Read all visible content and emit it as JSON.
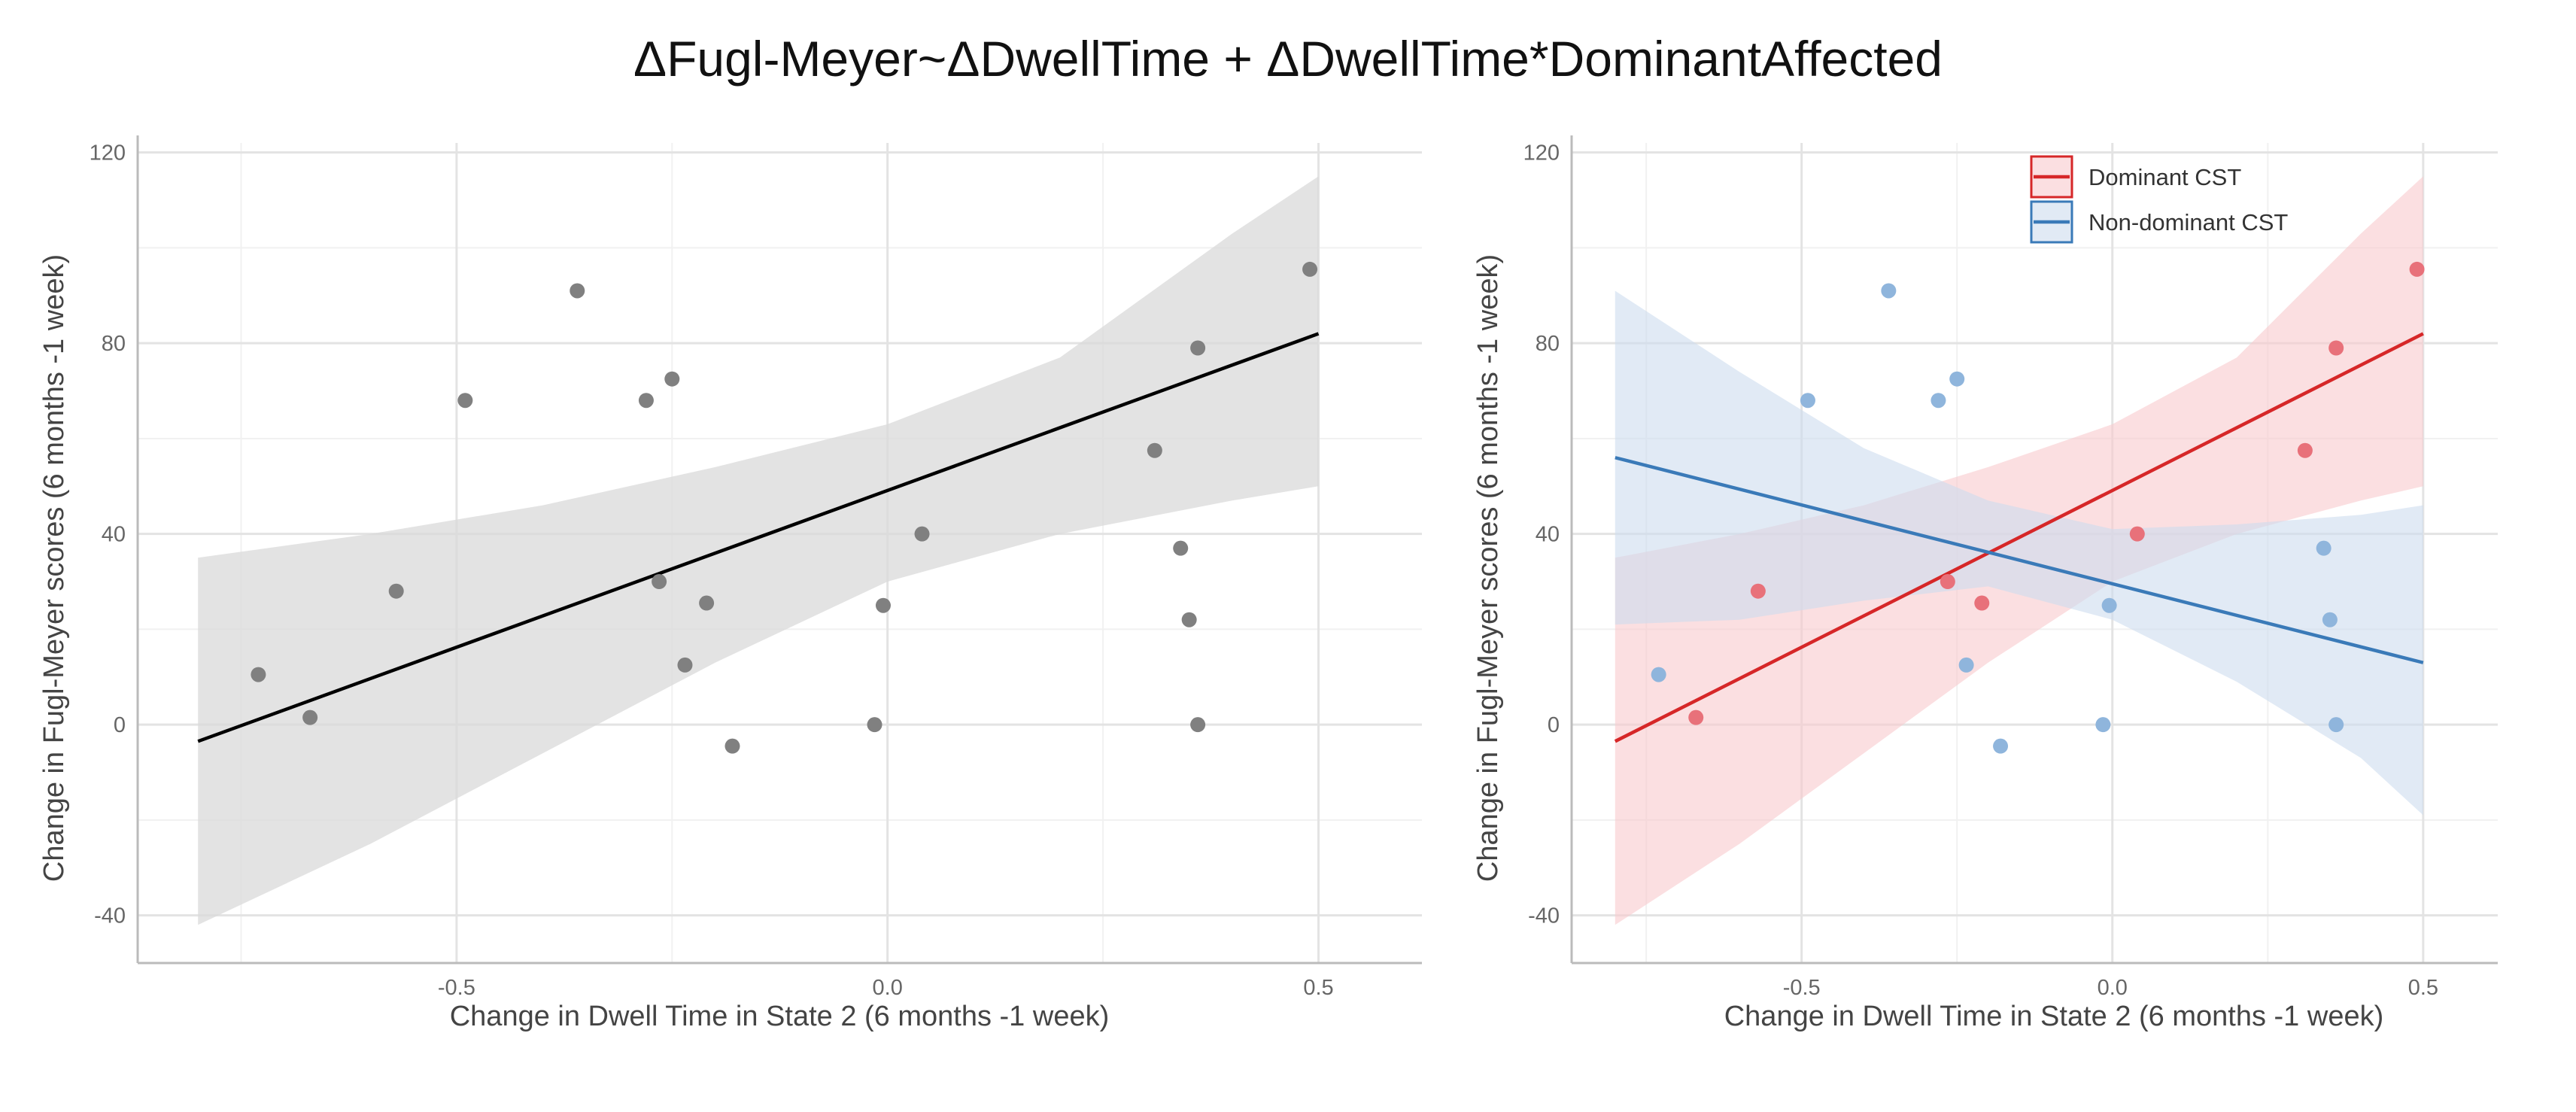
{
  "figure": {
    "title": "ΔFugl-Meyer~ΔDwellTime + ΔDwellTime*DominantAffected"
  },
  "chart_data": [
    {
      "type": "scatter",
      "xlabel": "Change in Dwell Time in State 2 (6 months -1 week)",
      "ylabel": "Change in Fugl-Meyer scores (6 months -1 week)",
      "xlim": [
        -0.87,
        0.62
      ],
      "ylim": [
        -50,
        122
      ],
      "x_ticks": [
        -0.5,
        0.0,
        0.5
      ],
      "x_tick_labels": [
        "-0.5",
        "0.0",
        "0.5"
      ],
      "y_ticks": [
        -40,
        0,
        40,
        80,
        120
      ],
      "y_tick_labels": [
        "-40",
        "0",
        "40",
        "80",
        "120"
      ],
      "grid": true,
      "point_color": "#808080",
      "line_color": "#000000",
      "band_color": "#d9d9d9",
      "points": [
        {
          "x": -0.73,
          "y": 10.5
        },
        {
          "x": -0.67,
          "y": 1.5
        },
        {
          "x": -0.57,
          "y": 28
        },
        {
          "x": -0.49,
          "y": 68
        },
        {
          "x": -0.36,
          "y": 91
        },
        {
          "x": -0.28,
          "y": 68
        },
        {
          "x": -0.265,
          "y": 30
        },
        {
          "x": -0.25,
          "y": 72.5
        },
        {
          "x": -0.235,
          "y": 12.5
        },
        {
          "x": -0.21,
          "y": 25.5
        },
        {
          "x": -0.18,
          "y": -4.5
        },
        {
          "x": -0.015,
          "y": 0
        },
        {
          "x": -0.005,
          "y": 25
        },
        {
          "x": 0.04,
          "y": 40
        },
        {
          "x": 0.31,
          "y": 57.5
        },
        {
          "x": 0.34,
          "y": 37
        },
        {
          "x": 0.35,
          "y": 22
        },
        {
          "x": 0.36,
          "y": 79
        },
        {
          "x": 0.36,
          "y": 0
        },
        {
          "x": 0.49,
          "y": 95.5
        }
      ],
      "fit": {
        "x": [
          -0.8,
          0.5
        ],
        "y": [
          -3.5,
          82
        ]
      },
      "ci_band": {
        "x": [
          -0.8,
          -0.6,
          -0.4,
          -0.2,
          0.0,
          0.2,
          0.4,
          0.5
        ],
        "lower": [
          -42,
          -25,
          -6,
          13,
          30,
          40,
          47,
          50
        ],
        "upper": [
          35,
          40,
          46,
          54,
          63,
          77,
          103,
          115
        ]
      }
    },
    {
      "type": "scatter",
      "xlabel": "Change in Dwell Time in State 2 (6 months -1 week)",
      "ylabel": "Change in Fugl-Meyer scores (6 months -1 week)",
      "xlim": [
        -0.87,
        0.62
      ],
      "ylim": [
        -50,
        122
      ],
      "x_ticks": [
        -0.5,
        0.0,
        0.5
      ],
      "x_tick_labels": [
        "-0.5",
        "0.0",
        "0.5"
      ],
      "y_ticks": [
        -40,
        0,
        40,
        80,
        120
      ],
      "y_tick_labels": [
        "-40",
        "0",
        "40",
        "80",
        "120"
      ],
      "grid": true,
      "legend_position": "top-right",
      "series": [
        {
          "name": "Dominant CST",
          "color": "#d62728",
          "point_color": "#e8717a",
          "band_color": "#f8c9cd",
          "points": [
            {
              "x": -0.67,
              "y": 1.5
            },
            {
              "x": -0.57,
              "y": 28
            },
            {
              "x": -0.265,
              "y": 30
            },
            {
              "x": -0.21,
              "y": 25.5
            },
            {
              "x": 0.04,
              "y": 40
            },
            {
              "x": 0.31,
              "y": 57.5
            },
            {
              "x": 0.36,
              "y": 79
            },
            {
              "x": 0.49,
              "y": 95.5
            }
          ],
          "fit": {
            "x": [
              -0.8,
              0.5
            ],
            "y": [
              -3.5,
              82
            ]
          },
          "ci_band": {
            "x": [
              -0.8,
              -0.6,
              -0.4,
              -0.2,
              0.0,
              0.2,
              0.4,
              0.5
            ],
            "lower": [
              -42,
              -25,
              -6,
              13,
              30,
              40,
              47,
              50
            ],
            "upper": [
              35,
              40,
              46,
              54,
              63,
              77,
              103,
              115
            ]
          }
        },
        {
          "name": "Non-dominant CST",
          "color": "#3a7ab8",
          "point_color": "#8fb5dc",
          "band_color": "#cddcee",
          "points": [
            {
              "x": -0.73,
              "y": 10.5
            },
            {
              "x": -0.49,
              "y": 68
            },
            {
              "x": -0.36,
              "y": 91
            },
            {
              "x": -0.28,
              "y": 68
            },
            {
              "x": -0.25,
              "y": 72.5
            },
            {
              "x": -0.235,
              "y": 12.5
            },
            {
              "x": -0.18,
              "y": -4.5
            },
            {
              "x": -0.015,
              "y": 0
            },
            {
              "x": -0.005,
              "y": 25
            },
            {
              "x": 0.34,
              "y": 37
            },
            {
              "x": 0.35,
              "y": 22
            },
            {
              "x": 0.36,
              "y": 0
            }
          ],
          "fit": {
            "x": [
              -0.8,
              0.5
            ],
            "y": [
              56,
              13
            ]
          },
          "ci_band": {
            "x": [
              -0.8,
              -0.6,
              -0.4,
              -0.2,
              0.0,
              0.2,
              0.4,
              0.5
            ],
            "lower": [
              21,
              22,
              26,
              29,
              22,
              9,
              -7,
              -19
            ],
            "upper": [
              91,
              74,
              58,
              47,
              41,
              42,
              44,
              46
            ]
          }
        }
      ]
    }
  ]
}
